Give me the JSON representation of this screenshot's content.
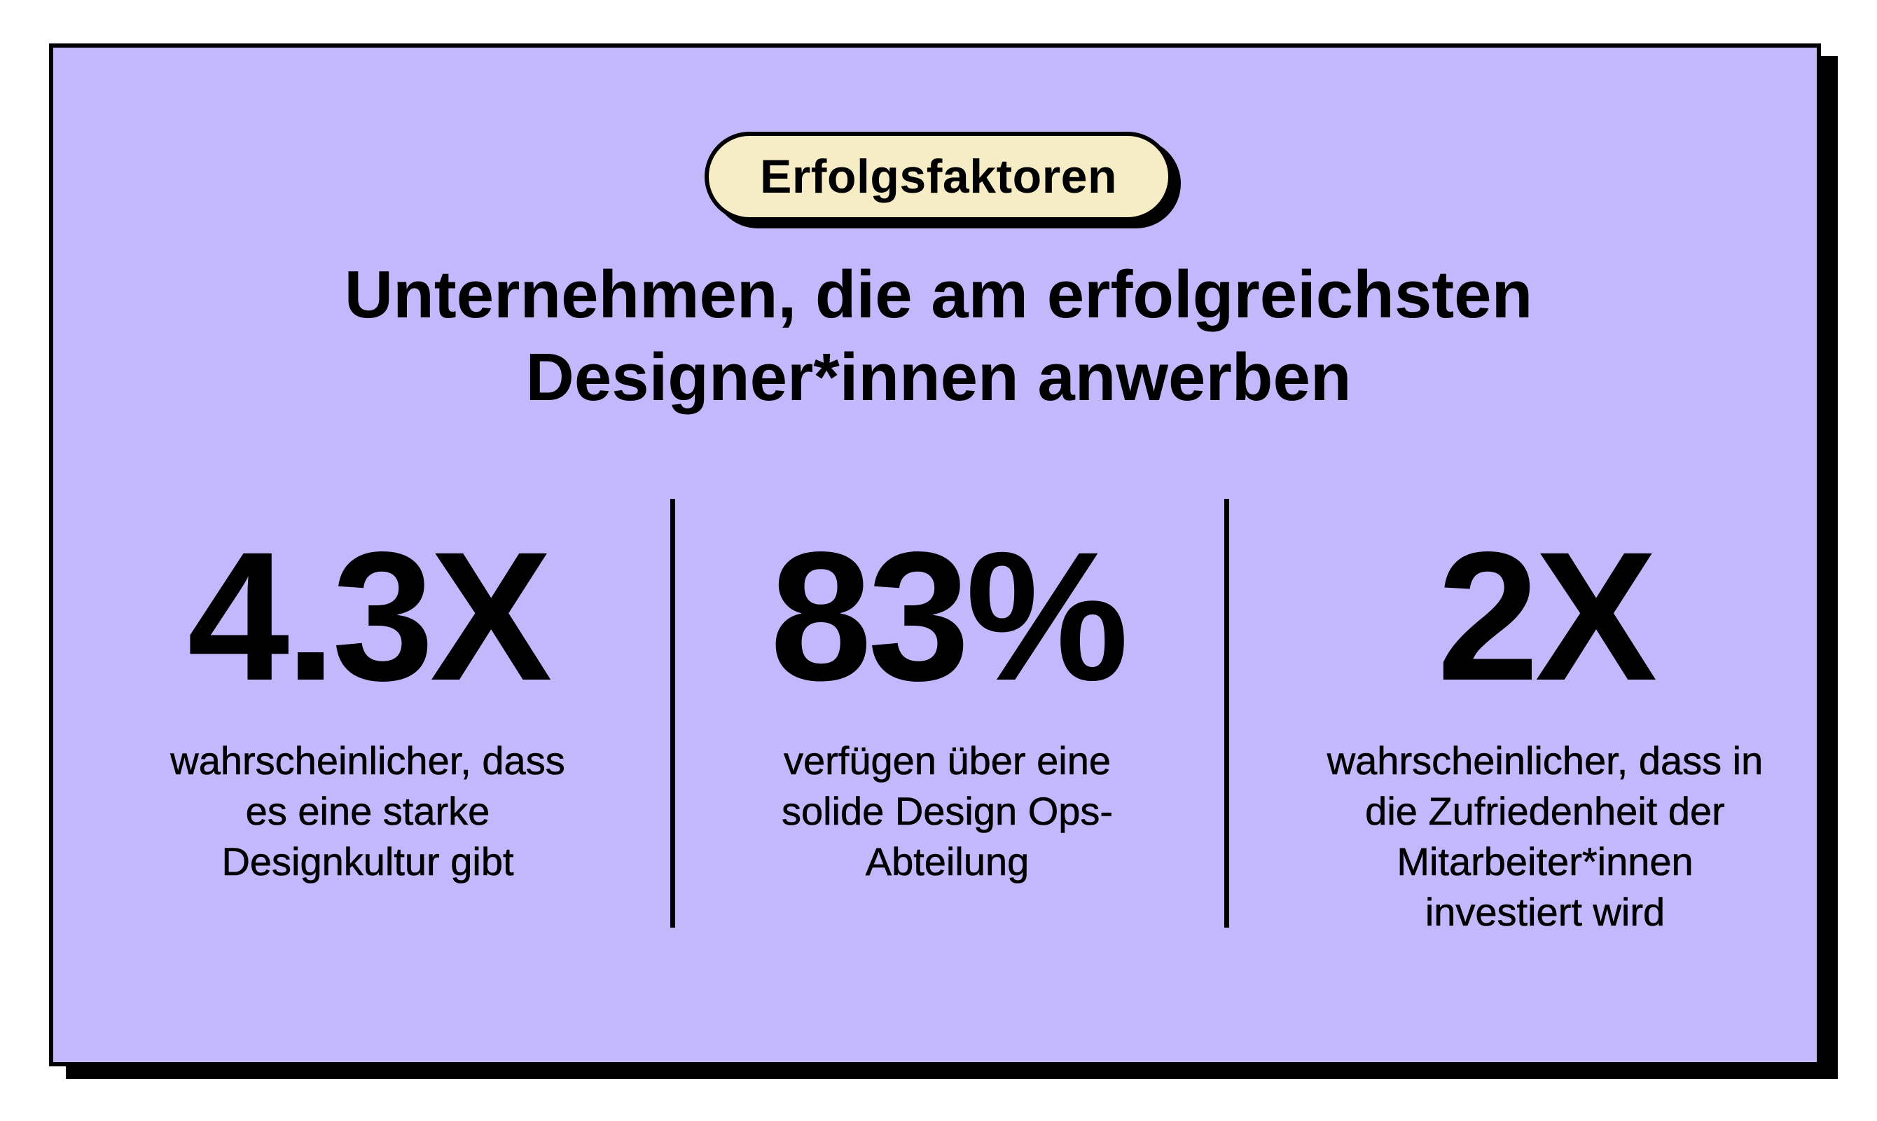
{
  "badge": {
    "label": "Erfolgsfaktoren"
  },
  "headline": {
    "lines": [
      "Unternehmen, die am erfolgreichsten",
      "Designer*innen anwerben"
    ]
  },
  "stats": [
    {
      "value": "4.3X",
      "description_lines": [
        "wahrscheinlicher, dass",
        "es eine starke",
        "Designkultur gibt"
      ]
    },
    {
      "value": "83%",
      "description_lines": [
        "verfügen über eine",
        "solide Design Ops-",
        "Abteilung"
      ]
    },
    {
      "value": "2X",
      "description_lines": [
        "wahrscheinlicher, dass in",
        "die Zufriedenheit der",
        "Mitarbeiter*innen",
        "investiert wird"
      ]
    }
  ],
  "colors": {
    "card_background": "#c4b8fc",
    "badge_background": "#f6ecc6",
    "ink": "#000000"
  }
}
